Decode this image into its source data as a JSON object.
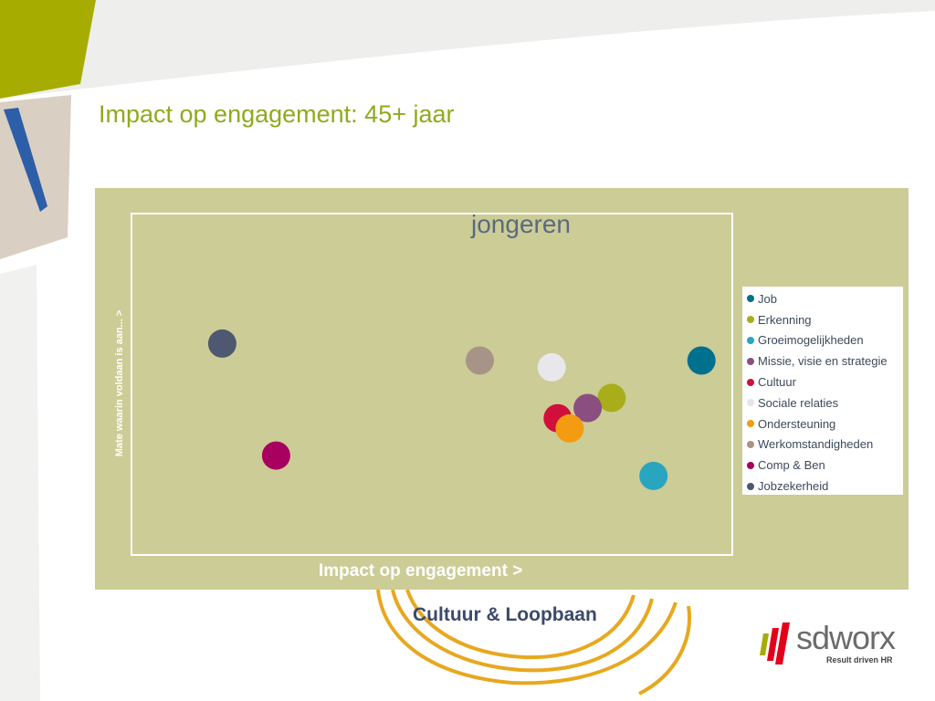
{
  "slide": {
    "title": "Impact op engagement: 45+ jaar",
    "footer": "Cultuur & Loopbaan"
  },
  "logo": {
    "name": "sdworx",
    "tagline": "Result driven HR"
  },
  "colors": {
    "accent_green": "#8faa1e",
    "chart_background": "#cccc96"
  },
  "chart_data": {
    "type": "scatter",
    "subtitle": "jongeren",
    "xlabel": "Impact op engagement >",
    "ylabel": "Mate waarin voldaan is aan... >",
    "legend_position": "right",
    "grid": false,
    "series": [
      {
        "name": "Job",
        "color": "#00708f",
        "x": 0.95,
        "y": 0.57
      },
      {
        "name": "Erkenning",
        "color": "#a8ad1a",
        "x": 0.8,
        "y": 0.46
      },
      {
        "name": "Groeimogelijkheden",
        "color": "#2aa5bf",
        "x": 0.87,
        "y": 0.23
      },
      {
        "name": "Missie, visie en strategie",
        "color": "#8a4f80",
        "x": 0.76,
        "y": 0.43
      },
      {
        "name": "Cultuur",
        "color": "#d0103a",
        "x": 0.71,
        "y": 0.4
      },
      {
        "name": "Sociale relaties",
        "color": "#e8e8ec",
        "x": 0.7,
        "y": 0.55
      },
      {
        "name": "Ondersteuning",
        "color": "#f39c12",
        "x": 0.73,
        "y": 0.37
      },
      {
        "name": "Werkomstandigheden",
        "color": "#a89486",
        "x": 0.58,
        "y": 0.57
      },
      {
        "name": "Comp & Ben",
        "color": "#a8005f",
        "x": 0.24,
        "y": 0.29
      },
      {
        "name": "Jobzekerheid",
        "color": "#4e5870",
        "x": 0.15,
        "y": 0.62
      }
    ],
    "xlim": [
      0,
      1
    ],
    "ylim": [
      0,
      1
    ]
  }
}
